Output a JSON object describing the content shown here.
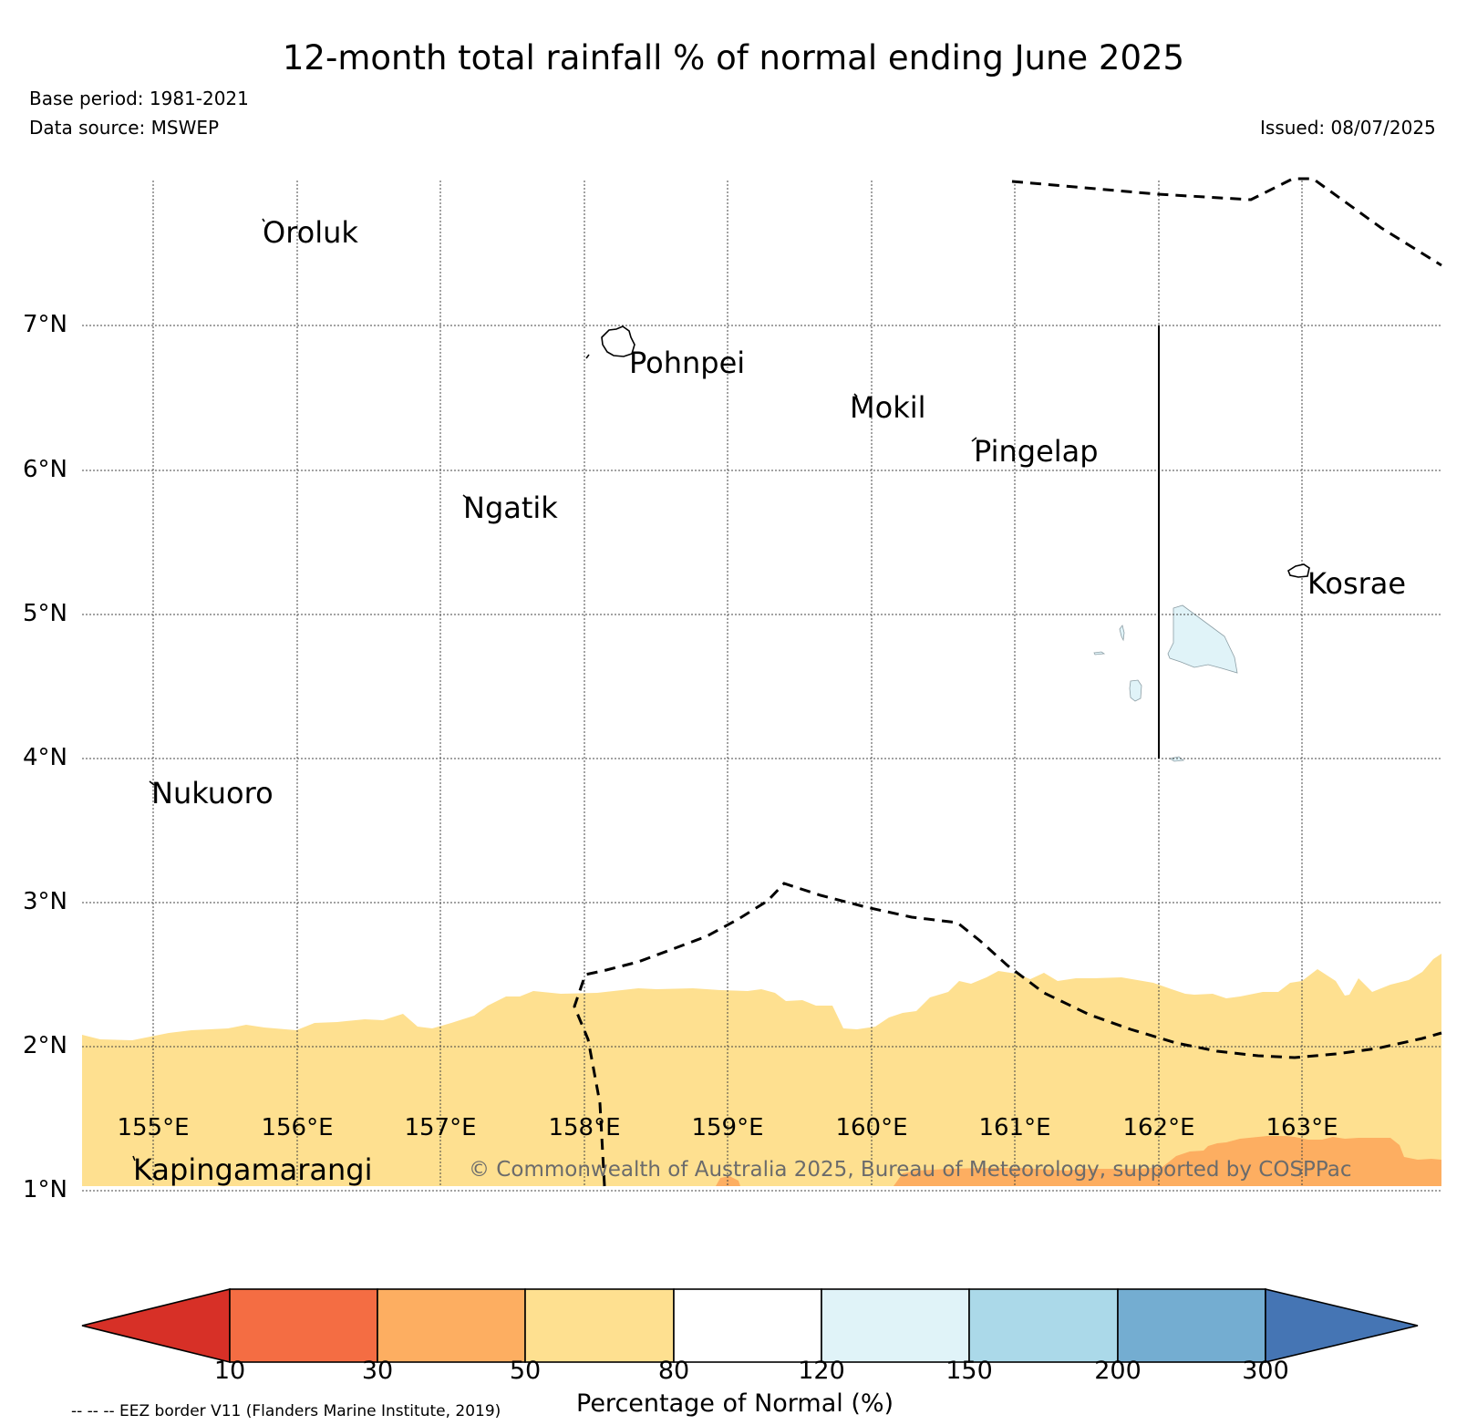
{
  "header": {
    "title": "12-month total rainfall % of normal ending June 2025",
    "base_period": "Base period: 1981-2021",
    "data_source": "Data source: MSWEP",
    "issued": "Issued: 08/07/2025"
  },
  "map": {
    "lat_labels": [
      "7°N",
      "6°N",
      "5°N",
      "4°N",
      "3°N",
      "2°N",
      "1°N"
    ],
    "lon_labels": [
      "155°E",
      "156°E",
      "157°E",
      "158°E",
      "159°E",
      "160°E",
      "161°E",
      "162°E",
      "163°E"
    ],
    "islands": [
      "Oroluk",
      "Pohnpei",
      "Mokil",
      "Pingelap",
      "Ngatik",
      "Kosrae",
      "Nukuoro",
      "Kapingamarangi"
    ],
    "copyright": "© Commonwealth of Australia 2025, Bureau of Meteorology, supported by COSPPac",
    "eez_note": "-- -- -- EEZ border V11 (Flanders Marine Institute, 2019)"
  },
  "colorbar": {
    "title": "Percentage of Normal (%)",
    "ticks": [
      "10",
      "30",
      "50",
      "80",
      "120",
      "150",
      "200",
      "300"
    ],
    "colors": [
      "#d73027",
      "#f46d43",
      "#fdae61",
      "#fee090",
      "#ffffff",
      "#e0f3f8",
      "#abd9e9",
      "#74add1",
      "#4575b4"
    ]
  }
}
